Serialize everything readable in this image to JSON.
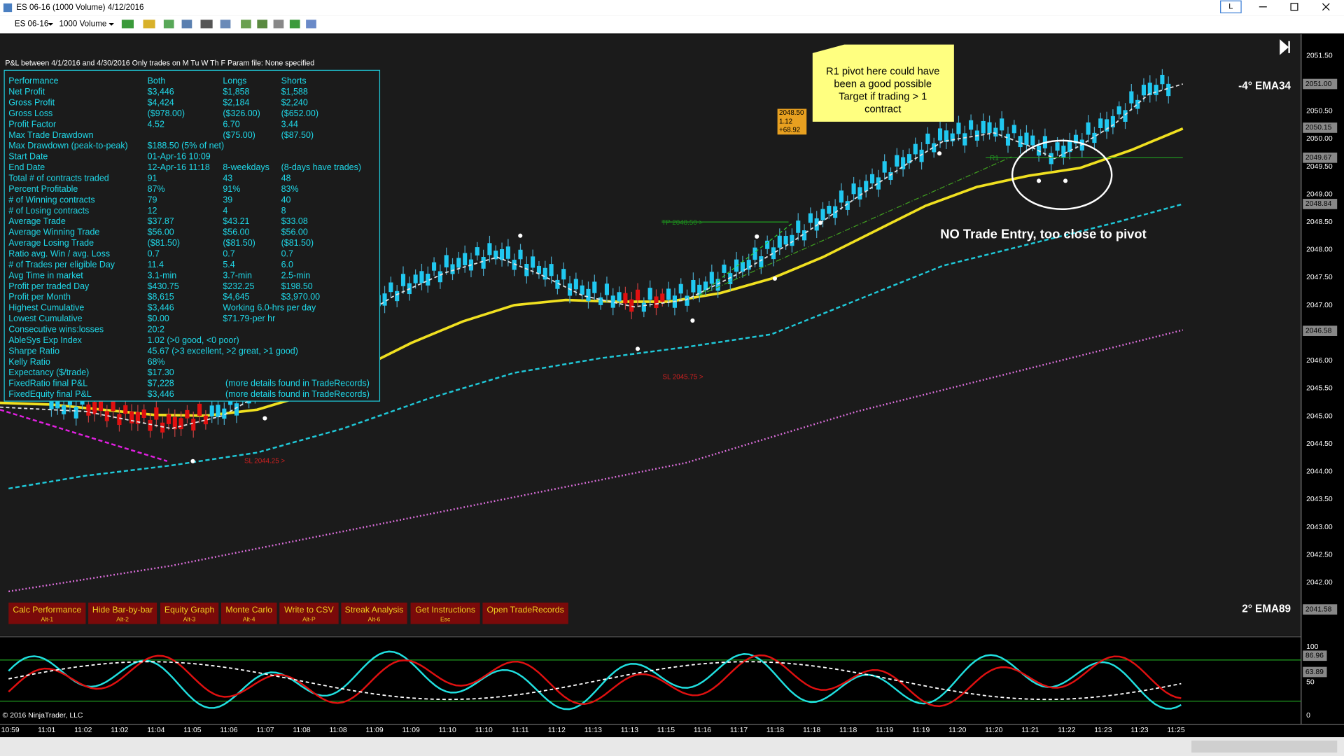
{
  "window": {
    "title": "ES 06-16 (1000 Volume)  4/12/2016",
    "restore_button": "L"
  },
  "toolbar": {
    "instrument": "ES 06-16",
    "period": "1000 Volume"
  },
  "stats": {
    "header": "P&L between 4/1/2016 and 4/30/2016  Only trades on M Tu W Th F   Param file: None specified",
    "rows": [
      [
        "Performance",
        "Both",
        "Longs",
        "Shorts"
      ],
      [
        "Net Profit",
        "$3,446",
        "$1,858",
        "$1,588"
      ],
      [
        "Gross Profit",
        "$4,424",
        "$2,184",
        "$2,240"
      ],
      [
        "Gross Loss",
        "($978.00)",
        "($326.00)",
        "($652.00)"
      ],
      [
        "Profit Factor",
        "4.52",
        "6.70",
        "3.44"
      ],
      [
        "Max Trade Drawdown",
        null,
        "($75.00)",
        "($87.50)"
      ],
      [
        "Max Drawdown (peak-to-peak)",
        "$188.50 (5% of net)"
      ],
      [
        "Start Date",
        "01-Apr-16 10:09"
      ],
      [
        "End Date",
        "12-Apr-16 11:18",
        "8-weekdays",
        "(8-days have trades)"
      ],
      [
        "Total # of contracts traded",
        "91",
        "43",
        "48"
      ],
      [
        "Percent Profitable",
        "87%",
        "91%",
        "83%"
      ],
      [
        "# of Winning contracts",
        "79",
        "39",
        "40"
      ],
      [
        "# of Losing contracts",
        "12",
        "4",
        "8"
      ],
      [
        "Average Trade",
        "$37.87",
        "$43.21",
        "$33.08"
      ],
      [
        "Average Winning Trade",
        "$56.00",
        "$56.00",
        "$56.00"
      ],
      [
        "Average Losing Trade",
        "($81.50)",
        "($81.50)",
        "($81.50)"
      ],
      [
        "Ratio avg. Win / avg. Loss",
        "0.7",
        "0.7",
        "0.7"
      ],
      [
        "# of Trades per eligible Day",
        "11.4",
        "5.4",
        "6.0"
      ],
      [
        "Avg Time in market",
        "3.1-min",
        "3.7-min",
        "2.5-min"
      ],
      [
        "Profit per traded Day",
        "$430.75",
        "$232.25",
        "$198.50"
      ],
      [
        "Profit per Month",
        "$8,615",
        "$4,645",
        "$3,970.00"
      ],
      [
        "Highest Cumulative",
        "$3,446",
        "Working 6.0-hrs per day"
      ],
      [
        "Lowest Cumulative",
        "$0.00",
        "$71.79-per hr"
      ],
      [
        "Consecutive wins:losses",
        "20:2"
      ],
      [
        "AbleSys Exp Index",
        "1.02 (>0 good, <0 poor)"
      ],
      [
        "Sharpe Ratio",
        "45.67 (>3 excellent, >2 great, >1 good)"
      ],
      [
        "Kelly Ratio",
        "68%"
      ],
      [
        "Expectancy ($/trade)",
        "$17.30"
      ],
      [
        "FixedRatio final P&L",
        "$7,228",
        "(more details found in TradeRecords)"
      ],
      [
        "FixedEquity final P&L",
        "$3,446",
        "(more details found in TradeRecords)"
      ]
    ]
  },
  "buttons": [
    {
      "label": "Calc Performance",
      "key": "Alt-1"
    },
    {
      "label": "Hide Bar-by-bar",
      "key": "Alt-2"
    },
    {
      "label": "Equity Graph",
      "key": "Alt-3"
    },
    {
      "label": "Monte Carlo",
      "key": "Alt-4"
    },
    {
      "label": "Write to CSV",
      "key": "Alt-P"
    },
    {
      "label": "Streak Analysis",
      "key": "Alt-6"
    },
    {
      "label": "Get Instructions",
      "key": "Esc"
    },
    {
      "label": "Open TradeRecords"
    }
  ],
  "annotations": {
    "callout": [
      "R1 pivot here could have",
      "been a good possible",
      "Target if trading > 1",
      "contract"
    ],
    "no_trade": "NO Trade Entry, too close to pivot",
    "ema34": "-4° EMA34",
    "ema89": "2° EMA89",
    "tp": "TP 2048.50 >",
    "sl_mid": "SL 2045.75 >",
    "sl_left": "SL 2044.25 >",
    "r1": "R1",
    "tag": [
      "2048.50",
      "1.12",
      "+68.92"
    ]
  },
  "price_axis": {
    "ticks": [
      "2051.50",
      "2051.00",
      "2050.50",
      "2050.00",
      "2049.50",
      "2049.00",
      "2048.50",
      "2048.00",
      "2047.50",
      "2047.00",
      "2046.50",
      "2046.00",
      "2045.50",
      "2045.00",
      "2044.50",
      "2044.00",
      "2043.50",
      "2043.00",
      "2042.50",
      "2042.00",
      "2041.50"
    ],
    "markers": [
      "2051.00",
      "2050.15",
      "2049.67",
      "2048.84",
      "2046.58",
      "2041.58"
    ]
  },
  "oscillator_axis": {
    "ticks": [
      "100",
      "50",
      "0"
    ],
    "markers": [
      "86.96",
      "63.89"
    ]
  },
  "time_axis": [
    "10:59",
    "11:01",
    "11:02",
    "11:02",
    "11:04",
    "11:05",
    "11:06",
    "11:07",
    "11:08",
    "11:08",
    "11:09",
    "11:09",
    "11:10",
    "11:10",
    "11:11",
    "11:12",
    "11:13",
    "11:13",
    "11:15",
    "11:16",
    "11:17",
    "11:18",
    "11:18",
    "11:18",
    "11:19",
    "11:19",
    "11:20",
    "11:20",
    "11:21",
    "11:22",
    "11:23",
    "11:23",
    "11:25"
  ],
  "copyright": "© 2016 NinjaTrader, LLC"
}
